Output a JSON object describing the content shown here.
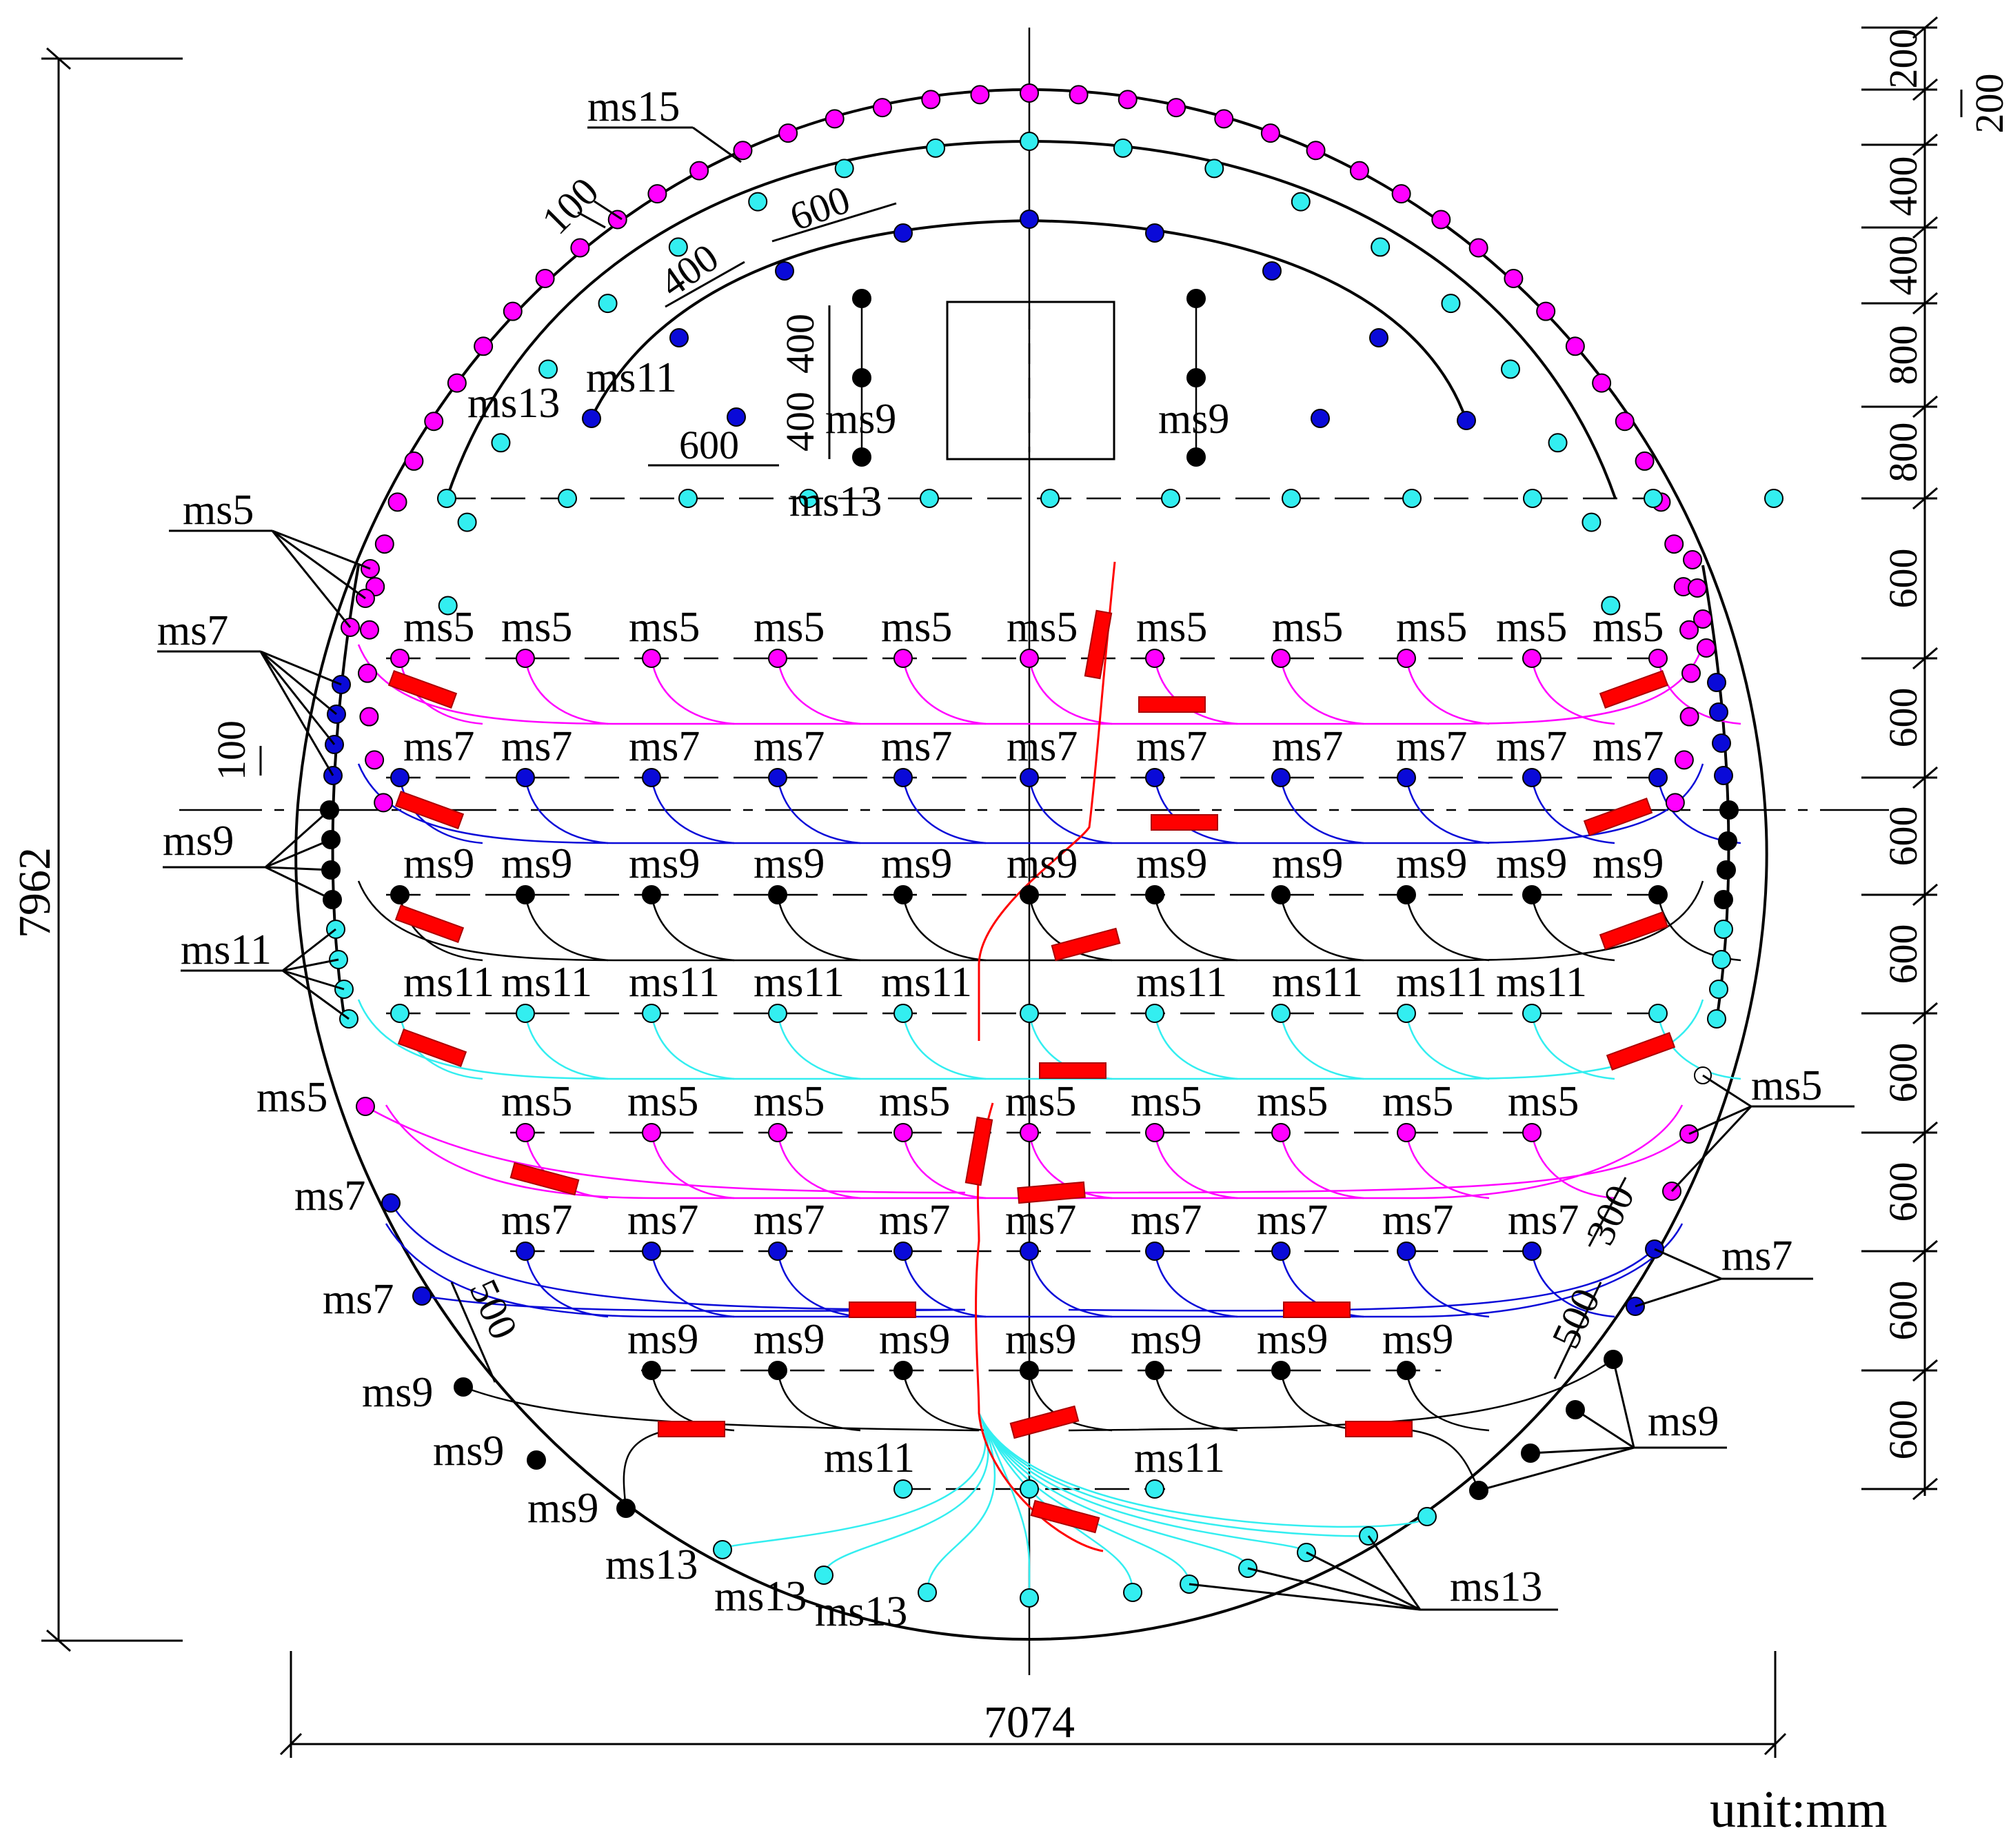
{
  "colors": {
    "ms5": "#ff00ff",
    "ms7": "#0a0ad8",
    "ms9": "#000000",
    "ms11": "#33eef0",
    "ms13": "#33eef0",
    "ms15": "#ff00ff",
    "detonator": "#ff0000",
    "outline": "#000000"
  },
  "icons": {
    "charge_hole": "filled-circle",
    "empty_hole": "hollow-circle",
    "detonator": "red-rectangle"
  },
  "overall_dims": {
    "height": "7962",
    "width": "7074",
    "unit": "unit:mm"
  },
  "right_dims": [
    "200",
    "200",
    "400",
    "400",
    "800",
    "800",
    "600",
    "600",
    "600",
    "600",
    "600",
    "600",
    "600",
    "600"
  ],
  "spacing_dims": {
    "perim_gap": "100",
    "ring_gap": "400",
    "ring_spacing": "600",
    "cut_v1": "400",
    "cut_v2": "400",
    "row_spacing": "600",
    "wall_gap": "100",
    "inv_left": "500",
    "inv_right": "500",
    "inv_right2": "300"
  },
  "callouts": {
    "ms15": "ms15",
    "ms13_upper": "ms13",
    "ms11_upper": "ms11",
    "ms9_cut_left": "ms9",
    "ms9_cut_right": "ms9",
    "ms13_floor": "ms13",
    "ms5_left": "ms5",
    "ms7_left": "ms7",
    "ms9_left": "ms9",
    "ms11_left": "ms11",
    "ms5_bench_left": "ms5",
    "ms7_bench_left_a": "ms7",
    "ms7_bench_left_b": "ms7",
    "ms9_bench_left_a": "ms9",
    "ms9_bench_left_b": "ms9",
    "ms9_bench_left_c": "ms9",
    "ms5_right": "ms5",
    "ms7_right": "ms7",
    "ms9_right": "ms9",
    "ms11_inv_left": "ms11",
    "ms11_inv_right": "ms11",
    "ms13_inv_a": "ms13",
    "ms13_inv_b": "ms13",
    "ms13_inv_c": "ms13",
    "ms13_inv_right": "ms13"
  },
  "row_labels": {
    "r5a": [
      "ms5",
      "ms5",
      "ms5",
      "ms5",
      "ms5",
      "ms5",
      "ms5",
      "ms5",
      "ms5",
      "ms5",
      "ms5"
    ],
    "r7a": [
      "ms7",
      "ms7",
      "ms7",
      "ms7",
      "ms7",
      "ms7",
      "ms7",
      "ms7",
      "ms7",
      "ms7",
      "ms7"
    ],
    "r9a": [
      "ms9",
      "ms9",
      "ms9",
      "ms9",
      "ms9",
      "ms9",
      "ms9",
      "ms9",
      "ms9",
      "ms9",
      "ms9"
    ],
    "r11a": [
      "ms11",
      "ms11",
      "ms11",
      "ms11",
      "ms11",
      "ms11",
      "ms11",
      "ms11",
      "ms11"
    ],
    "r5b": [
      "ms5",
      "ms5",
      "ms5",
      "ms5",
      "ms5",
      "ms5",
      "ms5",
      "ms5",
      "ms5"
    ],
    "r7b": [
      "ms7",
      "ms7",
      "ms7",
      "ms7",
      "ms7",
      "ms7",
      "ms7",
      "ms7",
      "ms7"
    ],
    "r9b": [
      "ms9",
      "ms9",
      "ms9",
      "ms9",
      "ms9",
      "ms9",
      "ms9"
    ]
  }
}
